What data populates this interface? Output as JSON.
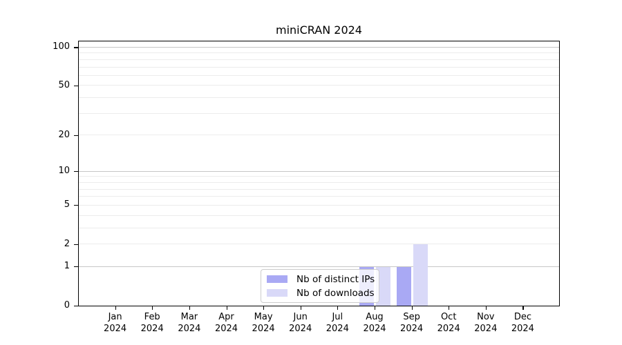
{
  "title": "miniCRAN 2024",
  "chart_data": {
    "type": "bar",
    "title": "miniCRAN 2024",
    "scale": "log1p",
    "grid": "horizontal",
    "categories": [
      "Jan",
      "Feb",
      "Mar",
      "Apr",
      "May",
      "Jun",
      "Jul",
      "Aug",
      "Sep",
      "Oct",
      "Nov",
      "Dec"
    ],
    "category_year": "2024",
    "series": [
      {
        "name": "Nb of distinct IPs",
        "color": "#a9a9f4",
        "values": [
          0,
          0,
          0,
          0,
          0,
          0,
          0,
          1,
          1,
          0,
          0,
          0
        ]
      },
      {
        "name": "Nb of downloads",
        "color": "#d9d9f8",
        "values": [
          0,
          0,
          0,
          0,
          0,
          0,
          0,
          1,
          2,
          0,
          0,
          0
        ]
      }
    ],
    "yticks": [
      0,
      1,
      2,
      5,
      10,
      20,
      50,
      100
    ],
    "ylim": [
      0,
      112
    ],
    "grid_major_values": [
      1,
      10,
      100
    ],
    "grid_minor_values": [
      2,
      3,
      4,
      5,
      6,
      7,
      8,
      9,
      20,
      30,
      40,
      50,
      60,
      70,
      80,
      90
    ],
    "legend_position": "lower-center-inside"
  },
  "colors": {
    "axis": "#000000",
    "grid_major": "#c6c6c6",
    "grid_minor": "#ececec",
    "legend_border": "#cccccc",
    "background": "#ffffff"
  }
}
